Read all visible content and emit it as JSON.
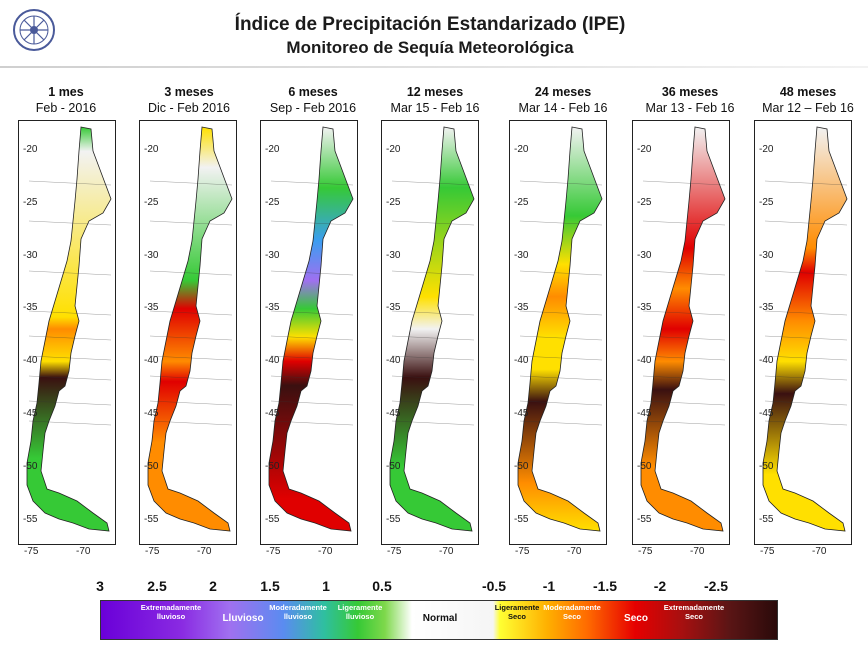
{
  "header": {
    "title": "Índice de Precipitación Estandarizado (IPE)",
    "subtitle": "Monitoreo de Sequía Meteorológica"
  },
  "axes": {
    "y_ticks": [
      "-20",
      "-25",
      "-30",
      "-35",
      "-40",
      "-45",
      "-50",
      "-55"
    ],
    "x_ticks": [
      "-75",
      "-70"
    ]
  },
  "panels": [
    {
      "period": "1 mes",
      "dates": "Feb - 2016"
    },
    {
      "period": "3 meses",
      "dates": "Dic - Feb 2016"
    },
    {
      "period": "6 meses",
      "dates": "Sep - Feb 2016"
    },
    {
      "period": "12 meses",
      "dates": "Mar 15 - Feb 16"
    },
    {
      "period": "24 meses",
      "dates": "Mar 14 - Feb 16"
    },
    {
      "period": "36 meses",
      "dates": "Mar 13 - Feb 16"
    },
    {
      "period": "48 meses",
      "dates": "Mar 12 – Feb 16"
    }
  ],
  "colorbar": {
    "ticks": [
      "3",
      "2.5",
      "2",
      "1.5",
      "1",
      "0.5",
      "-0.5",
      "-1",
      "-1.5",
      "-2",
      "-2.5"
    ],
    "categories": [
      {
        "line1": "Extremadamente",
        "line2": "lluvioso"
      },
      {
        "line1": "Lluvioso",
        "line2": ""
      },
      {
        "line1": "Moderadamente",
        "line2": "lluvioso"
      },
      {
        "line1": "Ligeramente",
        "line2": "lluvioso"
      },
      {
        "line1": "Normal",
        "line2": ""
      },
      {
        "line1": "Ligeramente",
        "line2": "Seco"
      },
      {
        "line1": "Moderadamente",
        "line2": "Seco"
      },
      {
        "line1": "Seco",
        "line2": ""
      },
      {
        "line1": "Extremadamente",
        "line2": "Seco"
      }
    ]
  },
  "colors": {
    "extremely_wet": "#6a00d8",
    "wet": "#a070f0",
    "moderately_wet": "#3a9ef0",
    "slightly_wet": "#36c936",
    "normal": "#f2f2f2",
    "slightly_dry": "#ffe000",
    "moderately_dry": "#ff8c00",
    "dry": "#e00000",
    "extremely_dry": "#3a1010"
  }
}
